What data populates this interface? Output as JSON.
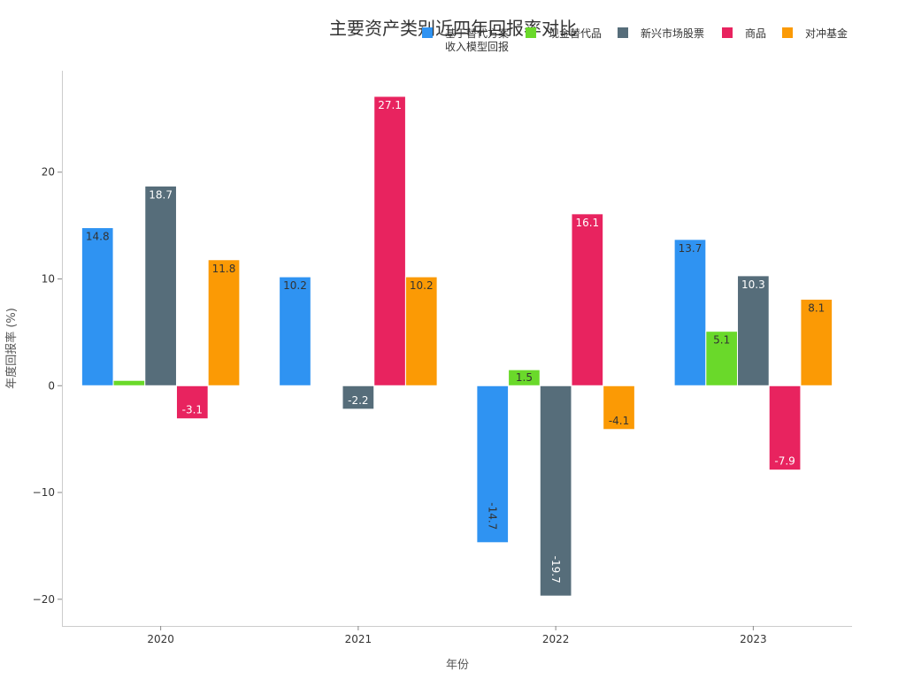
{
  "chart_data": {
    "type": "bar",
    "title": "主要资产类别近四年回报率对比",
    "xlabel": "年份",
    "ylabel": "年度回报率 (%)",
    "categories": [
      "2020",
      "2021",
      "2022",
      "2023"
    ],
    "ylim": [
      -22.5,
      29.5
    ],
    "yticks": [
      -20,
      -10,
      0,
      10,
      20
    ],
    "ytick_labels": [
      "−20",
      "−10",
      "0",
      "10",
      "20"
    ],
    "grid": false,
    "legend_position": "top-right",
    "series": [
      {
        "name": "基于替代方案",
        "name_line2": "收入模型回报",
        "color": "#2f93f2",
        "values": [
          14.8,
          10.2,
          -14.7,
          13.7
        ],
        "labels": [
          "14.8",
          "10.2",
          "-14.7",
          "13.7"
        ]
      },
      {
        "name": "现金替代品",
        "color": "#6ad92a",
        "values": [
          0.5,
          0.0,
          1.5,
          5.1
        ],
        "labels": [
          "",
          "",
          "1.5",
          "5.1"
        ]
      },
      {
        "name": "新兴市场股票",
        "color": "#566d7a",
        "values": [
          18.7,
          -2.2,
          -19.7,
          10.3
        ],
        "labels": [
          "18.7",
          "-2.2",
          "-19.7",
          "10.3"
        ]
      },
      {
        "name": "商品",
        "color": "#e8235f",
        "values": [
          -3.1,
          27.1,
          16.1,
          -7.9
        ],
        "labels": [
          "-3.1",
          "27.1",
          "16.1",
          "-7.9"
        ]
      },
      {
        "name": "对冲基金",
        "color": "#fb9a05",
        "values": [
          11.8,
          10.2,
          -4.1,
          8.1
        ],
        "labels": [
          "11.8",
          "10.2",
          "-4.1",
          "8.1"
        ]
      }
    ]
  }
}
